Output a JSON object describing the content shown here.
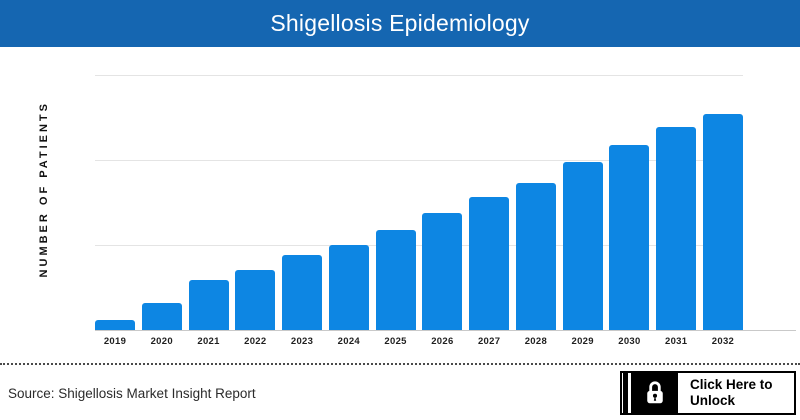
{
  "header": {
    "title": "Shigellosis Epidemiology",
    "bg_color": "#1566b1",
    "text_color": "#ffffff"
  },
  "chart_data": {
    "type": "bar",
    "title": "Shigellosis Epidemiology",
    "ylabel": "NUMBER OF PATIENTS",
    "xlabel": "",
    "categories": [
      "2019",
      "2020",
      "2021",
      "2022",
      "2023",
      "2024",
      "2025",
      "2026",
      "2027",
      "2028",
      "2029",
      "2030",
      "2031",
      "2032"
    ],
    "values_pct_of_plot_height": [
      3.9,
      10.6,
      19.6,
      23.5,
      29.5,
      33.5,
      39.1,
      45.9,
      52.3,
      57.8,
      65.9,
      72.5,
      79.5,
      84.7
    ],
    "y_tick_labels_visible": false,
    "grid": "horizontal",
    "gridline_count": 3,
    "legend": "none",
    "bar_color": "#0d86e3",
    "gridline_color": "#e4e4e4",
    "axis_line_color": "#c9c9c9"
  },
  "footer": {
    "source_text": "Source: Shigellosis Market Insight Report",
    "unlock_button": {
      "label_line1": "Click Here to",
      "label_line2": "Unlock",
      "icon": "lock-icon"
    }
  }
}
